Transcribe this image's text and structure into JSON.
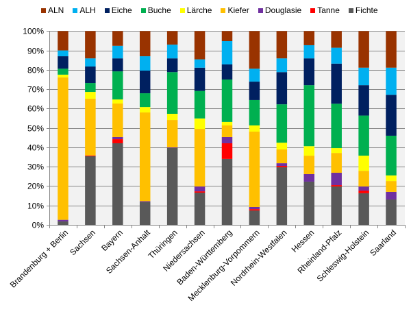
{
  "chart_data": {
    "type": "bar",
    "stacked": true,
    "percent_stacked": true,
    "title": "",
    "xlabel": "",
    "ylabel": "",
    "ylim": [
      0,
      100
    ],
    "yticks": [
      "0%",
      "10%",
      "20%",
      "30%",
      "40%",
      "50%",
      "60%",
      "70%",
      "80%",
      "90%",
      "100%"
    ],
    "grid": true,
    "legend_position": "top",
    "categories": [
      "Brandenburg + Berlin",
      "Sachsen",
      "Bayern",
      "Sachsen-Anhalt",
      "Thüringen",
      "Niedersachsen",
      "Baden-Württemberg",
      "Mecklenburg-Vorpommern",
      "Nordrhein-Westfalen",
      "Hessen",
      "Rheinland-Pfalz",
      "Schleswig-Holstein",
      "Saarland"
    ],
    "legend_order": [
      "ALN",
      "ALH",
      "Eiche",
      "Buche",
      "Lärche",
      "Kiefer",
      "Douglasie",
      "Tanne",
      "Fichte"
    ],
    "series": [
      {
        "name": "Fichte",
        "color": "#595959",
        "values": [
          1.8,
          35.4,
          42.1,
          11.8,
          39.7,
          16.6,
          34.0,
          7.4,
          29.7,
          22.3,
          19.8,
          16.3,
          13.1
        ]
      },
      {
        "name": "Tanne",
        "color": "#ff0000",
        "values": [
          0.0,
          0.4,
          2.1,
          0.0,
          0.0,
          0.7,
          8.1,
          0.7,
          0.7,
          0.0,
          0.7,
          1.4,
          0.0
        ]
      },
      {
        "name": "Douglasie",
        "color": "#7030a0",
        "values": [
          0.8,
          0.0,
          1.1,
          0.4,
          0.3,
          2.5,
          3.2,
          1.1,
          1.4,
          3.9,
          6.4,
          2.1,
          3.9
        ]
      },
      {
        "name": "Kiefer",
        "color": "#ffc000",
        "values": [
          73.5,
          29.3,
          17.3,
          45.8,
          14.1,
          29.7,
          6.0,
          38.9,
          7.1,
          9.5,
          10.2,
          8.1,
          5.6
        ]
      },
      {
        "name": "Lärche",
        "color": "#ffff00",
        "values": [
          1.4,
          3.5,
          2.1,
          2.8,
          3.2,
          5.4,
          1.8,
          3.2,
          3.5,
          4.9,
          2.5,
          7.8,
          2.9
        ]
      },
      {
        "name": "Buche",
        "color": "#00b050",
        "values": [
          3.1,
          4.6,
          14.5,
          7.1,
          21.5,
          14.2,
          21.9,
          13.1,
          19.8,
          31.5,
          22.9,
          20.7,
          20.5
        ]
      },
      {
        "name": "Eiche",
        "color": "#002060",
        "values": [
          6.4,
          8.5,
          6.7,
          11.7,
          7.1,
          12.0,
          7.8,
          9.5,
          16.6,
          13.8,
          20.7,
          15.7,
          21.1
        ]
      },
      {
        "name": "ALH",
        "color": "#00b0f0",
        "values": [
          3.0,
          4.2,
          6.5,
          7.4,
          7.1,
          4.3,
          12.0,
          6.7,
          7.1,
          6.8,
          8.2,
          9.0,
          14.0
        ]
      },
      {
        "name": "ALN",
        "color": "#993300",
        "values": [
          10.0,
          14.1,
          7.6,
          13.0,
          7.0,
          14.6,
          5.2,
          19.4,
          14.1,
          7.3,
          8.6,
          18.9,
          18.9
        ]
      }
    ]
  },
  "colors": {
    "plot_background": "#f2f2f2",
    "gridline": "#868686",
    "axis": "#868686"
  }
}
